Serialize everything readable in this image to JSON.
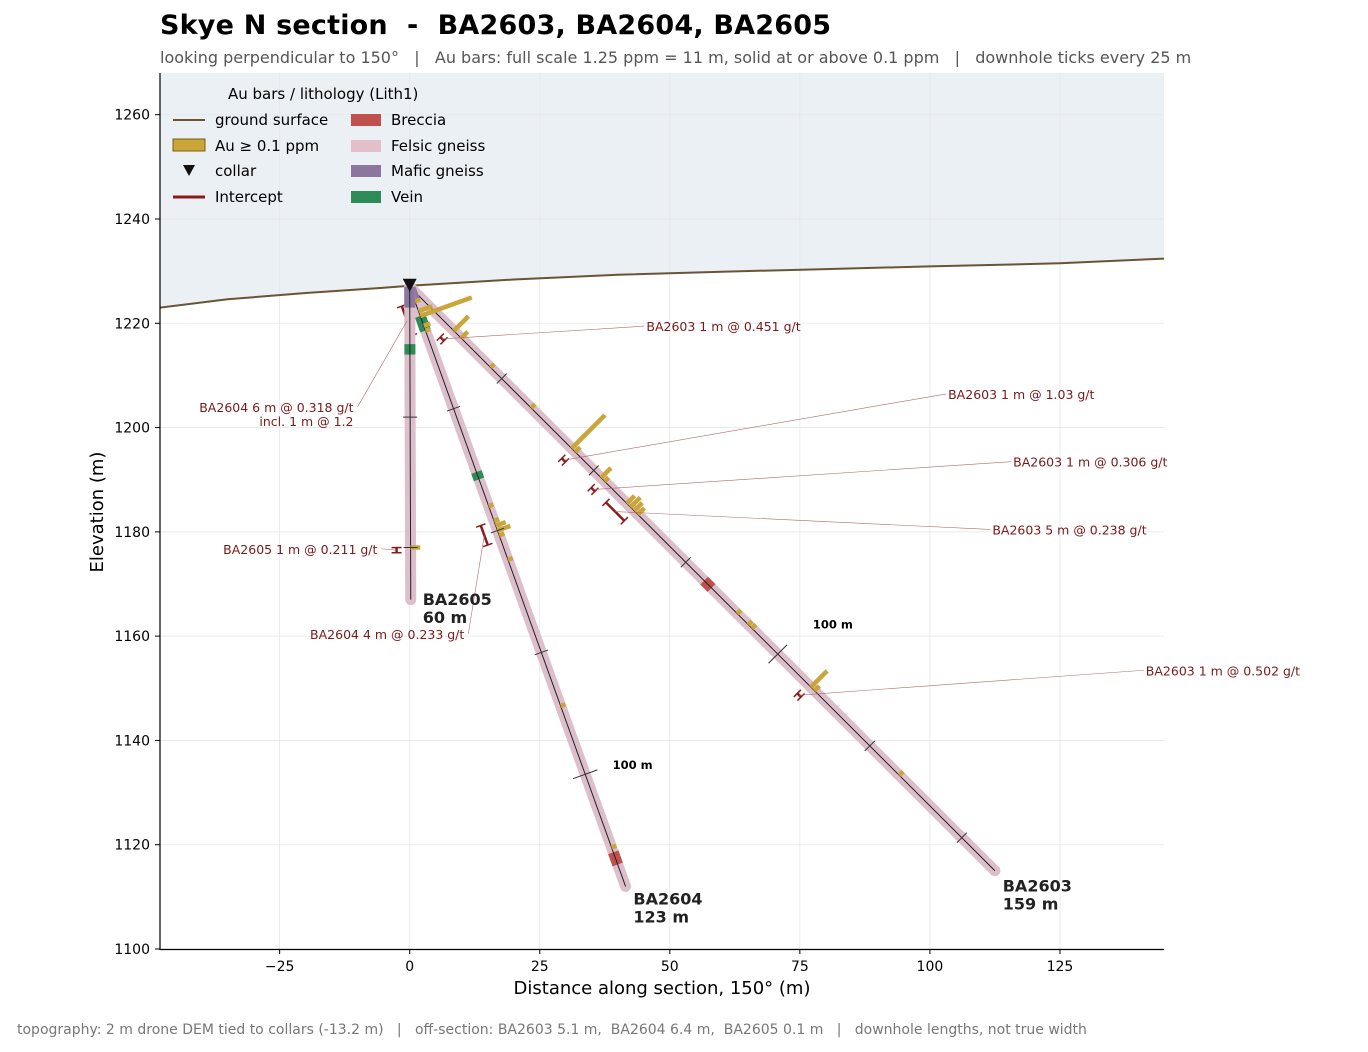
{
  "header": {
    "title": "Skye N section  -  BA2603, BA2604, BA2605",
    "subtitle": "looking perpendicular to 150°   |   Au bars: full scale 1.25 ppm = 11 m, solid at or above 0.1 ppm   |   downhole ticks every 25 m"
  },
  "footer": "topography: 2 m drone DEM tied to collars (-13.2 m)   |   off-section: BA2603 5.1 m,  BA2604 6.4 m,  BA2605 0.1 m   |   downhole lengths, not true width",
  "chart_data": {
    "type": "scatter",
    "xlabel": "Distance along section, 150°  (m)",
    "ylabel": "Elevation (m)",
    "xlim": [
      -48,
      145
    ],
    "ylim": [
      1100,
      1268
    ],
    "xticks": [
      -25,
      0,
      25,
      50,
      75,
      100,
      125
    ],
    "yticks": [
      1100,
      1120,
      1140,
      1160,
      1180,
      1200,
      1220,
      1240,
      1260
    ],
    "grid": true,
    "legend": {
      "title": "Au bars / lithology (Lith1)",
      "placement": "top-left",
      "items": [
        {
          "label": "ground surface",
          "kind": "line",
          "color": "#6b5434"
        },
        {
          "label": "Au ≥ 0.1 ppm",
          "kind": "bar",
          "color": "#c9a53a"
        },
        {
          "label": "collar",
          "kind": "triangle",
          "color": "#111111"
        },
        {
          "label": "Intercept",
          "kind": "line",
          "color": "#8b1a1a"
        },
        {
          "label": "Breccia",
          "kind": "patch",
          "color": "#c0504d"
        },
        {
          "label": "Felsic gneiss",
          "kind": "patch",
          "color": "#e3bfc9"
        },
        {
          "label": "Mafic gneiss",
          "kind": "patch",
          "color": "#8c76a0"
        },
        {
          "label": "Vein",
          "kind": "patch",
          "color": "#2e8b57"
        }
      ]
    },
    "colors": {
      "sky": "#ebf0f4",
      "topo": "#6b5434",
      "au": "#c9a53a",
      "intercept": "#8b1a1a",
      "breccia": "#c0504d",
      "felsic": "#dcbfcb",
      "mafic": "#8c76a0",
      "vein": "#2e8b57"
    },
    "topography": [
      [
        -48,
        1223.0
      ],
      [
        -35,
        1224.6
      ],
      [
        -20,
        1225.8
      ],
      [
        -5,
        1226.8
      ],
      [
        0,
        1227.2
      ],
      [
        20,
        1228.4
      ],
      [
        40,
        1229.3
      ],
      [
        60,
        1229.9
      ],
      [
        80,
        1230.4
      ],
      [
        100,
        1230.9
      ],
      [
        125,
        1231.5
      ],
      [
        145,
        1232.4
      ]
    ],
    "holes": [
      {
        "name": "BA2603",
        "length_label": "159 m",
        "collar": [
          0,
          1227
        ],
        "end": [
          112.5,
          1115
        ],
        "label_at": [
          114,
          1111
        ],
        "au_bars": [
          {
            "d": 12,
            "ppm": 0.451
          },
          {
            "d": 14,
            "ppm": 0.2
          },
          {
            "d": 22,
            "ppm": 0.11
          },
          {
            "d": 33,
            "ppm": 0.12
          },
          {
            "d": 44,
            "ppm": 1.03
          },
          {
            "d": 45,
            "ppm": 0.15
          },
          {
            "d": 52,
            "ppm": 0.306
          },
          {
            "d": 53,
            "ppm": 0.12
          },
          {
            "d": 59,
            "ppm": 0.238
          },
          {
            "d": 60,
            "ppm": 0.3
          },
          {
            "d": 61,
            "ppm": 0.25
          },
          {
            "d": 62,
            "ppm": 0.2
          },
          {
            "d": 89,
            "ppm": 0.1
          },
          {
            "d": 92,
            "ppm": 0.11
          },
          {
            "d": 93,
            "ppm": 0.12
          },
          {
            "d": 109,
            "ppm": 0.502
          },
          {
            "d": 110,
            "ppm": 0.15
          },
          {
            "d": 133,
            "ppm": 0.12
          }
        ],
        "lith": [
          {
            "from": 80,
            "to": 82,
            "rock": "breccia"
          }
        ],
        "ticks": [
          25,
          50,
          75,
          100,
          125,
          150
        ],
        "mark100": {
          "d": 100,
          "text": "100 m",
          "at": [
            77.5,
            1161.5
          ]
        },
        "intercepts": [
          {
            "from": 11,
            "to": 12,
            "text": "BA2603  1 m @ 0.451 g/t",
            "at": [
              45.5,
              1218.5
            ]
          },
          {
            "from": 44,
            "to": 45,
            "text": "BA2603  1 m @ 1.03 g/t",
            "at": [
              103.5,
              1205.5
            ]
          },
          {
            "from": 52,
            "to": 53,
            "text": "BA2603  1 m @ 0.306 g/t",
            "at": [
              116,
              1192.5
            ]
          },
          {
            "from": 56,
            "to": 61,
            "text": "BA2603  5 m @ 0.238 g/t",
            "at": [
              112,
              1179.5
            ]
          },
          {
            "from": 108,
            "to": 109,
            "text": "BA2603  1 m @ 0.502 g/t",
            "at": [
              141.5,
              1152.5
            ]
          }
        ]
      },
      {
        "name": "BA2604",
        "length_label": "123 m",
        "collar": [
          0,
          1227
        ],
        "end": [
          41.5,
          1112
        ],
        "label_at": [
          43,
          1108.5
        ],
        "au_bars": [
          {
            "d": 3,
            "ppm": 0.12
          },
          {
            "d": 5,
            "ppm": 0.318
          },
          {
            "d": 6,
            "ppm": 1.2
          },
          {
            "d": 8,
            "ppm": 0.15
          },
          {
            "d": 9,
            "ppm": 0.1
          },
          {
            "d": 45,
            "ppm": 0.1
          },
          {
            "d": 48,
            "ppm": 0.12
          },
          {
            "d": 49,
            "ppm": 0.233
          },
          {
            "d": 50,
            "ppm": 0.3
          },
          {
            "d": 51,
            "ppm": 0.12
          },
          {
            "d": 56,
            "ppm": 0.1
          },
          {
            "d": 86,
            "ppm": 0.1
          },
          {
            "d": 115,
            "ppm": 0.11
          }
        ],
        "lith": [
          {
            "from": 0,
            "to": 3,
            "rock": "mafic"
          },
          {
            "from": 6,
            "to": 9,
            "rock": "vein"
          },
          {
            "from": 38,
            "to": 39.5,
            "rock": "vein"
          },
          {
            "from": 116,
            "to": 118.5,
            "rock": "breccia"
          }
        ],
        "ticks": [
          25,
          50,
          75,
          100
        ],
        "mark100": {
          "d": 100,
          "text": "100 m",
          "at": [
            39,
            1134.5
          ]
        },
        "intercepts": [
          {
            "from": 3,
            "to": 9,
            "text": "BA2604  6 m @ 0.318 g/t",
            "text2": "incl. 1 m @ 1.2",
            "at": [
              -10.8,
              1203
            ]
          },
          {
            "from": 48,
            "to": 52,
            "text": "BA2604  4 m @ 0.233 g/t",
            "at": [
              10.5,
              1159.5
            ]
          }
        ]
      },
      {
        "name": "BA2605",
        "length_label": "60 m",
        "collar": [
          0,
          1227
        ],
        "end": [
          0.2,
          1167
        ],
        "label_at": [
          2.5,
          1166
        ],
        "au_bars": [
          {
            "d": 50,
            "ppm": 0.211
          }
        ],
        "lith": [
          {
            "from": 0,
            "to": 4,
            "rock": "mafic"
          },
          {
            "from": 11,
            "to": 13,
            "rock": "vein"
          }
        ],
        "ticks": [
          25,
          50
        ],
        "intercepts": [
          {
            "from": 50,
            "to": 51,
            "text": "BA2605  1 m @ 0.211 g/t",
            "at": [
              -6.2,
              1175.8
            ]
          }
        ]
      }
    ]
  }
}
